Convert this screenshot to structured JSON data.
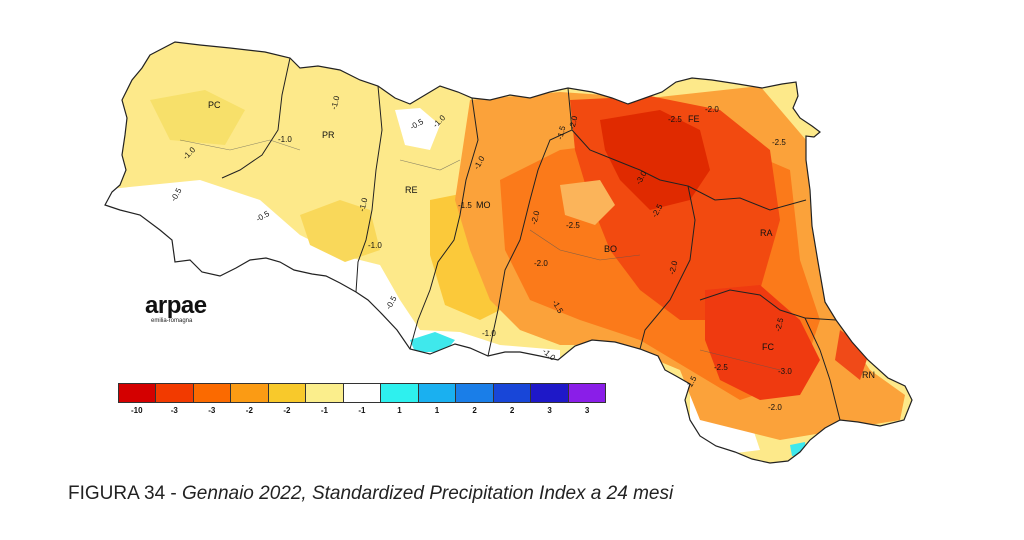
{
  "map": {
    "province_labels": [
      "PC",
      "PR",
      "RE",
      "MO",
      "BO",
      "FE",
      "RA",
      "FC",
      "RN"
    ],
    "contour_labels": [
      "-1.0",
      "-0.5",
      "-1.0",
      "-0.5",
      "-1.0",
      "-1.0",
      "-0.5",
      "-1.0",
      "-1.0",
      "-1.0",
      "-1.5",
      "-2.0",
      "-1.5",
      "-2.5",
      "-2.0",
      "-2.5",
      "-3.0",
      "-2.5",
      "-2.0",
      "-2.5",
      "-2.0",
      "-2.0",
      "-1.5",
      "-2.5",
      "-3.0",
      "-2.5",
      "-2.0",
      "-1.5",
      "-1.0",
      "-0.5",
      "-1.0"
    ]
  },
  "legend": {
    "colors": [
      "#d40000",
      "#f23a00",
      "#fb6a00",
      "#fb9b14",
      "#f8c92b",
      "#fbee8c",
      "#ffffff",
      "#2ef0ee",
      "#1ab0f0",
      "#1a7ee8",
      "#1846d8",
      "#1e18c8",
      "#8a1ee8"
    ],
    "ticks": [
      "-10",
      "-3",
      "-3",
      "-2",
      "-2",
      "-1",
      "-1",
      "1",
      "1",
      "2",
      "2",
      "3",
      "3"
    ]
  },
  "logo": {
    "main": "arpae",
    "sub": "emilia-romagna"
  },
  "caption": {
    "prefix": "FIGURA 34 - ",
    "text": "Gennaio 2022, Standardized Precipitation Index a 24 mesi"
  }
}
